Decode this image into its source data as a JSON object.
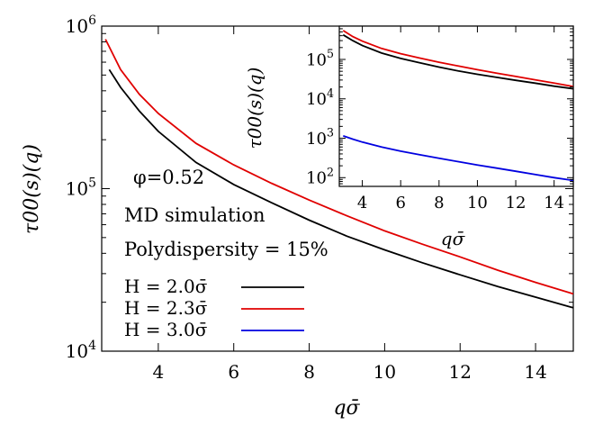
{
  "chart_data": [
    {
      "type": "line",
      "role": "main",
      "xlabel": "qσ̄",
      "ylabel": "τ00(s)(q)",
      "xlim": [
        2.5,
        15
      ],
      "ylim": [
        10000,
        1000000
      ],
      "yscale": "log",
      "xticks": [
        "4",
        "6",
        "8",
        "10",
        "12",
        "14"
      ],
      "yticks": [
        "10",
        "10",
        "10"
      ],
      "ytick_exponents": [
        "4",
        "5",
        "6"
      ],
      "grid": false,
      "annotations": {
        "phi": "φ=0.52",
        "method": "MD simulation",
        "polydispersity": "Polydispersity = 15%"
      },
      "legend_position": "lower-left",
      "series": [
        {
          "name": "H = 2.0σ̄",
          "color": "#000000",
          "x": [
            2.7,
            3,
            3.5,
            4,
            5,
            6,
            7,
            8,
            9,
            10,
            11,
            12,
            13,
            14,
            15
          ],
          "y": [
            540000,
            420000,
            300000,
            225000,
            145000,
            106000,
            82000,
            64000,
            51000,
            42000,
            35000,
            29500,
            25000,
            21500,
            18500
          ]
        },
        {
          "name": "H = 2.3σ̄",
          "color": "#e00000",
          "x": [
            2.6,
            3,
            3.5,
            4,
            5,
            6,
            7,
            8,
            9,
            10,
            11,
            12,
            13,
            14,
            15
          ],
          "y": [
            830000,
            540000,
            380000,
            290000,
            190000,
            140000,
            108000,
            85000,
            68000,
            55000,
            45500,
            38000,
            31500,
            26500,
            22500
          ]
        },
        {
          "name": "H = 3.0σ̄",
          "color": "#0000e0",
          "x": [],
          "y": []
        }
      ]
    },
    {
      "type": "line",
      "role": "inset",
      "xlabel": "qσ̄",
      "ylabel": "τ00(s)(q)",
      "xlim": [
        2.8,
        15
      ],
      "ylim": [
        60,
        700000
      ],
      "yscale": "log",
      "xticks": [
        "4",
        "6",
        "8",
        "10",
        "12",
        "14"
      ],
      "yticks": [
        "10",
        "10",
        "10",
        "10"
      ],
      "ytick_exponents": [
        "2",
        "3",
        "4",
        "5"
      ],
      "series": [
        {
          "name": "H = 2.0σ̄",
          "color": "#000000",
          "x": [
            3,
            3.5,
            4,
            5,
            6,
            7,
            8,
            9,
            10,
            11,
            12,
            13,
            14,
            15
          ],
          "y": [
            420000,
            300000,
            225000,
            145000,
            106000,
            82000,
            64000,
            51000,
            42000,
            35000,
            29500,
            25000,
            21000,
            18000
          ]
        },
        {
          "name": "H = 2.3σ̄",
          "color": "#e00000",
          "x": [
            3,
            3.5,
            4,
            5,
            6,
            7,
            8,
            9,
            10,
            11,
            12,
            13,
            14,
            15
          ],
          "y": [
            540000,
            380000,
            290000,
            190000,
            140000,
            108000,
            85000,
            68000,
            55000,
            45000,
            37000,
            30500,
            25000,
            20500
          ]
        },
        {
          "name": "H = 3.0σ̄",
          "color": "#0000e0",
          "x": [
            3,
            3.5,
            4,
            5,
            6,
            7,
            8,
            9,
            10,
            11,
            12,
            13,
            14,
            15
          ],
          "y": [
            1150,
            950,
            800,
            600,
            470,
            380,
            310,
            255,
            210,
            175,
            145,
            120,
            100,
            85
          ]
        }
      ]
    }
  ]
}
